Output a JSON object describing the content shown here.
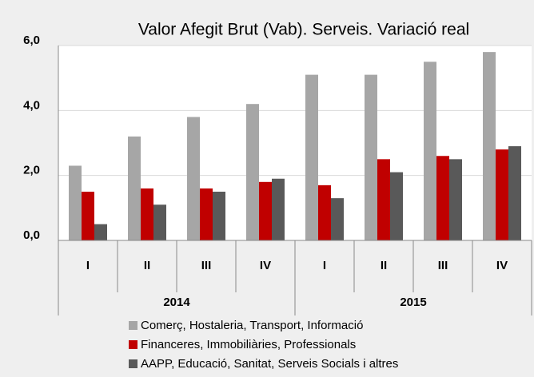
{
  "chart_data": {
    "type": "bar",
    "title": "Valor Afegit Brut (Vab). Serveis. Variació real",
    "groups": [
      {
        "name": "2014",
        "categories": [
          "I",
          "II",
          "III",
          "IV"
        ]
      },
      {
        "name": "2015",
        "categories": [
          "I",
          "II",
          "III",
          "IV"
        ]
      }
    ],
    "series": [
      {
        "name": "Comerç, Hostaleria, Transport, Informació",
        "color": "#a6a6a6",
        "values": [
          2.3,
          3.2,
          3.8,
          4.2,
          5.1,
          5.1,
          5.5,
          5.8
        ]
      },
      {
        "name": "Financeres, Immobiliàries, Professionals",
        "color": "#c00000",
        "values": [
          1.5,
          1.6,
          1.6,
          1.8,
          1.7,
          2.5,
          2.6,
          2.8
        ]
      },
      {
        "name": "AAPP, Educació, Sanitat, Serveis Socials i altres",
        "color": "#595959",
        "values": [
          0.5,
          1.1,
          1.5,
          1.9,
          1.3,
          2.1,
          2.5,
          2.9
        ]
      }
    ],
    "ylim": [
      0,
      6
    ],
    "yticks": [
      {
        "value": 0,
        "label": "0,0"
      },
      {
        "value": 2,
        "label": "2,0"
      },
      {
        "value": 4,
        "label": "4,0"
      },
      {
        "value": 6,
        "label": "6,0"
      }
    ],
    "grid": true
  }
}
